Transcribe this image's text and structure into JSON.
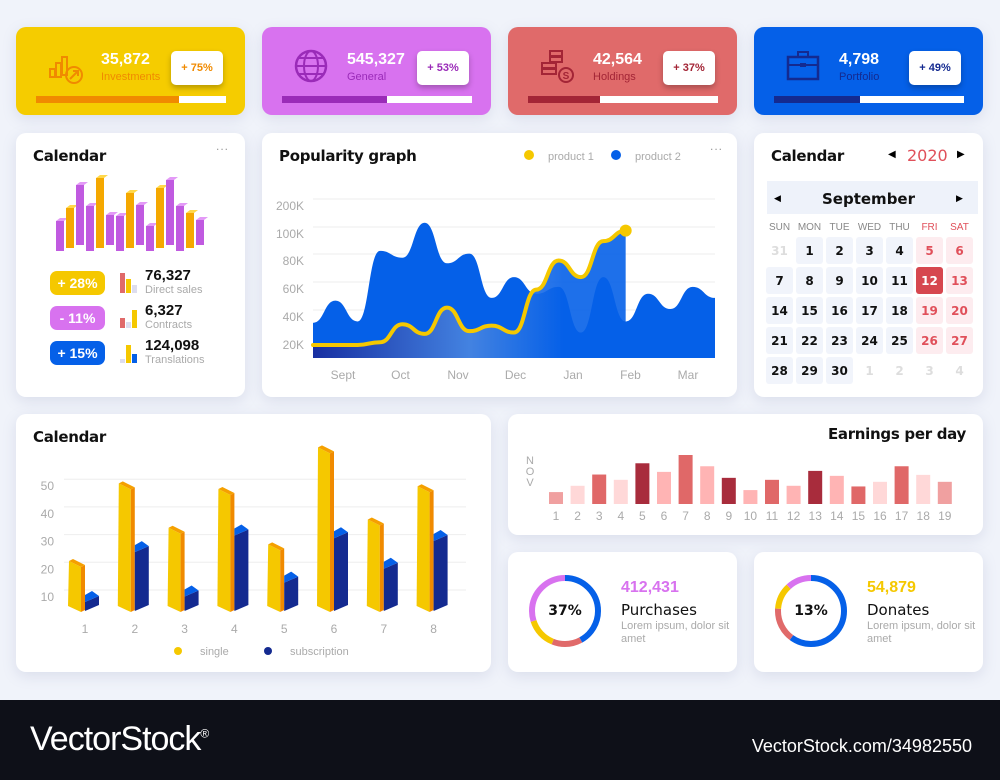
{
  "kpis": [
    {
      "value": "35,872",
      "label": "Investments",
      "change": "+ 75%",
      "progress": 75,
      "bg": "#f5cc00",
      "accent": "#f08a00",
      "icon": "investment-chart-icon"
    },
    {
      "value": "545,327",
      "label": "General",
      "change": "+ 53%",
      "progress": 55,
      "bg": "#d872ef",
      "accent": "#9a2bb8",
      "icon": "globe-icon"
    },
    {
      "value": "42,564",
      "label": "Holdings",
      "change": "+ 37%",
      "progress": 38,
      "bg": "#e06a6a",
      "accent": "#a32536",
      "icon": "coins-icon"
    },
    {
      "value": "4,798",
      "label": "Portfolio",
      "change": "+ 49%",
      "progress": 45,
      "bg": "#0560e8",
      "accent": "#142a90",
      "icon": "briefcase-icon"
    }
  ],
  "stats_card": {
    "title": "Calendar",
    "menu": "...",
    "rows": [
      {
        "badge": "+ 28%",
        "value": "76,327",
        "label": "Direct sales",
        "color": "#f5c800"
      },
      {
        "badge": "- 11%",
        "value": "6,327",
        "label": "Contracts",
        "color": "#d872ef"
      },
      {
        "badge": "+ 15%",
        "value": "124,098",
        "label": "Translations",
        "color": "#0560e8"
      }
    ]
  },
  "popularity": {
    "title": "Popularity graph",
    "menu": "...",
    "legend": [
      {
        "name": "product 1",
        "color": "#f5c800"
      },
      {
        "name": "product 2",
        "color": "#0560e8"
      }
    ]
  },
  "chart_data": [
    {
      "type": "area",
      "title": "Popularity graph",
      "x_ticks": [
        "Sept",
        "Oct",
        "Nov",
        "Dec",
        "Jan",
        "Feb",
        "Mar"
      ],
      "y_ticks": [
        "200K",
        "100K",
        "80K",
        "60K",
        "40K",
        "20K"
      ],
      "series": [
        {
          "name": "product 2",
          "type": "area",
          "color": "#0560e8",
          "values": [
            36,
            52,
            37,
            88,
            83,
            140,
            79,
            86,
            54,
            69,
            57,
            62,
            29,
            69,
            37,
            57,
            46,
            62,
            54
          ]
        },
        {
          "name": "product 1",
          "type": "line",
          "color": "#f5c800",
          "values": [
            20,
            20,
            20,
            22,
            35,
            28,
            47,
            30,
            34,
            29,
            60,
            81,
            69,
            95,
            112
          ]
        }
      ],
      "unit": "K"
    },
    {
      "type": "bar",
      "title": "Calendar",
      "categories": [
        "1",
        "2",
        "3",
        "4",
        "5",
        "6",
        "7",
        "8"
      ],
      "y_ticks": [
        10,
        20,
        30,
        40,
        50
      ],
      "series": [
        {
          "name": "single",
          "color": "#f5c800",
          "values": [
            23,
            51,
            35,
            49,
            29,
            64,
            38,
            50
          ]
        },
        {
          "name": "subscription",
          "color": "#142a90",
          "values": [
            10,
            28,
            12,
            34,
            17,
            33,
            22,
            32
          ]
        }
      ],
      "grid": true,
      "legend": "bottom"
    },
    {
      "type": "bar",
      "title": "Earnings per day",
      "ylabel": "NOV",
      "categories": [
        "1",
        "2",
        "3",
        "4",
        "5",
        "6",
        "7",
        "8",
        "9",
        "10",
        "11",
        "12",
        "13",
        "14",
        "15",
        "16",
        "17",
        "18",
        "19"
      ],
      "values": [
        36,
        55,
        89,
        73,
        123,
        97,
        148,
        114,
        79,
        42,
        73,
        55,
        100,
        85,
        53,
        67,
        114,
        88,
        67
      ],
      "colors": [
        "#f0a0a0",
        "#ffd8d8",
        "#e06868",
        "#ffd8d8",
        "#a82c3c",
        "#ffb4b4",
        "#e06868",
        "#ffb4b4",
        "#a82c3c",
        "#ffb4b4",
        "#e06868",
        "#ffb4b4",
        "#a82c3c",
        "#ffb4b4",
        "#e06868",
        "#ffd8d8",
        "#e06868",
        "#ffd8d8",
        "#f0a0a0"
      ]
    }
  ],
  "calendar": {
    "title": "Calendar",
    "year": "2020",
    "month": "September",
    "weekdays": [
      "SUN",
      "MON",
      "TUE",
      "WED",
      "THU",
      "FRI",
      "SAT"
    ],
    "days": [
      "31",
      "1",
      "2",
      "3",
      "4",
      "5",
      "6",
      "7",
      "8",
      "9",
      "10",
      "11",
      "12",
      "13",
      "14",
      "15",
      "16",
      "17",
      "18",
      "19",
      "20",
      "21",
      "22",
      "23",
      "24",
      "25",
      "26",
      "27",
      "28",
      "29",
      "30",
      "1",
      "2",
      "3",
      "4"
    ],
    "selected": "12",
    "accent": "#e0505a"
  },
  "donuts": [
    {
      "percent": "37%",
      "value": "412,431",
      "name": "Purchases",
      "desc": "Lorem ipsum, dolor sit amet",
      "color": "#d872ef",
      "segments": [
        {
          "c": "#0560e8",
          "v": 42
        },
        {
          "c": "#e06a6a",
          "v": 14
        },
        {
          "c": "#f5c800",
          "v": 14
        },
        {
          "c": "#d872ef",
          "v": 30
        }
      ]
    },
    {
      "percent": "13%",
      "value": "54,879",
      "name": "Donates",
      "desc": "Lorem ipsum, dolor sit amet",
      "color": "#f5c800",
      "segments": [
        {
          "c": "#0560e8",
          "v": 60
        },
        {
          "c": "#e06a6a",
          "v": 16
        },
        {
          "c": "#f5c800",
          "v": 12
        },
        {
          "c": "#d872ef",
          "v": 12
        }
      ]
    }
  ],
  "footer": {
    "logo": "VectorStock",
    "reg": "®",
    "url": "VectorStock.com/34982550"
  }
}
